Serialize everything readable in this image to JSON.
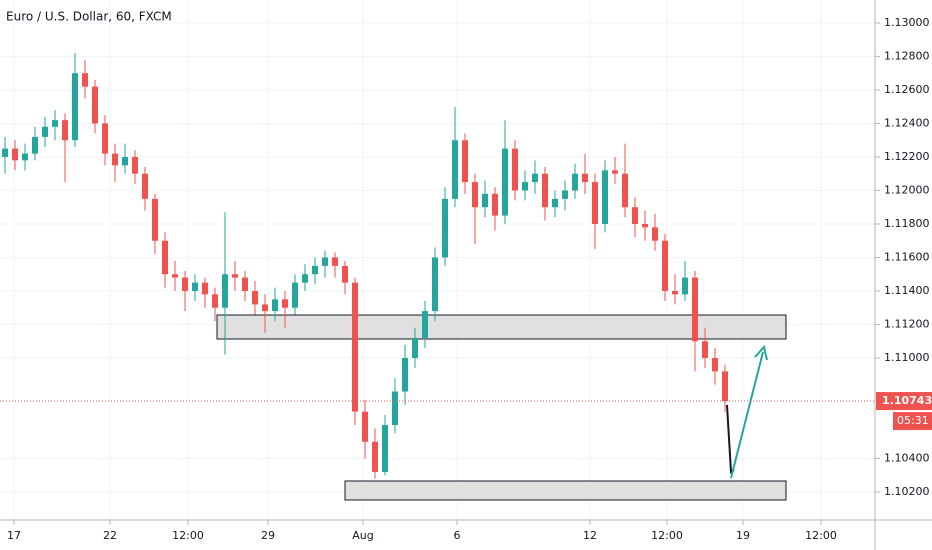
{
  "chart_data": {
    "type": "candlestick",
    "title": "Euro / U.S. Dollar, 60, FXCM",
    "up_color": "#26a69a",
    "down_color": "#ef5350",
    "ylim": [
      1.10033,
      1.13137
    ],
    "yticks": [
      {
        "value": 1.102,
        "label": "1.10200"
      },
      {
        "value": 1.104,
        "label": "1.10400"
      },
      {
        "value": 1.11,
        "label": "1.11000"
      },
      {
        "value": 1.112,
        "label": "1.11200"
      },
      {
        "value": 1.114,
        "label": "1.11400"
      },
      {
        "value": 1.116,
        "label": "1.11600"
      },
      {
        "value": 1.118,
        "label": "1.11800"
      },
      {
        "value": 1.12,
        "label": "1.12000"
      },
      {
        "value": 1.122,
        "label": "1.12200"
      },
      {
        "value": 1.124,
        "label": "1.12400"
      },
      {
        "value": 1.126,
        "label": "1.12600"
      },
      {
        "value": 1.128,
        "label": "1.12800"
      },
      {
        "value": 1.13,
        "label": "1.13000"
      }
    ],
    "xlim": [
      0,
      87.5
    ],
    "xticks": [
      {
        "value": 1.4,
        "label": "17"
      },
      {
        "value": 11,
        "label": "22"
      },
      {
        "value": 18.8,
        "label": "12:00"
      },
      {
        "value": 26.8,
        "label": "29"
      },
      {
        "value": 36.3,
        "label": "Aug"
      },
      {
        "value": 45.7,
        "label": "6"
      },
      {
        "value": 59,
        "label": "12"
      },
      {
        "value": 66.7,
        "label": "12:00"
      },
      {
        "value": 74.3,
        "label": "19"
      },
      {
        "value": 82.1,
        "label": "12:00"
      }
    ],
    "last_price": 1.10743,
    "countdown": "05:31",
    "ohlc": [
      [
        1.122,
        1.1232,
        1.121,
        1.1225
      ],
      [
        1.1225,
        1.123,
        1.1212,
        1.1218
      ],
      [
        1.1218,
        1.1228,
        1.1212,
        1.1222
      ],
      [
        1.1222,
        1.1238,
        1.1218,
        1.1232
      ],
      [
        1.1232,
        1.1244,
        1.1226,
        1.1238
      ],
      [
        1.1238,
        1.1248,
        1.123,
        1.1242
      ],
      [
        1.1242,
        1.1246,
        1.1205,
        1.123
      ],
      [
        1.123,
        1.1282,
        1.1226,
        1.127
      ],
      [
        1.127,
        1.1278,
        1.1255,
        1.1262
      ],
      [
        1.1262,
        1.1266,
        1.1234,
        1.124
      ],
      [
        1.124,
        1.1245,
        1.1215,
        1.1222
      ],
      [
        1.1222,
        1.1228,
        1.1205,
        1.1215
      ],
      [
        1.1215,
        1.1228,
        1.121,
        1.122
      ],
      [
        1.122,
        1.1224,
        1.1204,
        1.121
      ],
      [
        1.121,
        1.1214,
        1.1188,
        1.1195
      ],
      [
        1.1195,
        1.1198,
        1.1162,
        1.117
      ],
      [
        1.117,
        1.1175,
        1.1142,
        1.115
      ],
      [
        1.115,
        1.1158,
        1.114,
        1.1148
      ],
      [
        1.1148,
        1.1152,
        1.1128,
        1.114
      ],
      [
        1.114,
        1.115,
        1.1134,
        1.1145
      ],
      [
        1.1145,
        1.1148,
        1.113,
        1.1138
      ],
      [
        1.1138,
        1.1142,
        1.1122,
        1.113
      ],
      [
        1.113,
        1.1187,
        1.1102,
        1.115
      ],
      [
        1.115,
        1.1158,
        1.114,
        1.1148
      ],
      [
        1.1148,
        1.1152,
        1.1134,
        1.114
      ],
      [
        1.114,
        1.1146,
        1.1126,
        1.1132
      ],
      [
        1.1132,
        1.1138,
        1.1115,
        1.1128
      ],
      [
        1.1128,
        1.1142,
        1.1122,
        1.1135
      ],
      [
        1.1135,
        1.114,
        1.1118,
        1.113
      ],
      [
        1.113,
        1.115,
        1.1126,
        1.1145
      ],
      [
        1.1145,
        1.1156,
        1.114,
        1.115
      ],
      [
        1.115,
        1.116,
        1.1144,
        1.1155
      ],
      [
        1.1155,
        1.1164,
        1.1148,
        1.116
      ],
      [
        1.116,
        1.1163,
        1.1148,
        1.1155
      ],
      [
        1.1155,
        1.1158,
        1.1138,
        1.1145
      ],
      [
        1.1145,
        1.1148,
        1.106,
        1.1068
      ],
      [
        1.1068,
        1.1075,
        1.104,
        1.105
      ],
      [
        1.105,
        1.1058,
        1.1028,
        1.1032
      ],
      [
        1.1032,
        1.1066,
        1.103,
        1.106
      ],
      [
        1.106,
        1.1088,
        1.1055,
        1.108
      ],
      [
        1.108,
        1.1108,
        1.1072,
        1.11
      ],
      [
        1.11,
        1.1118,
        1.1094,
        1.1112
      ],
      [
        1.1112,
        1.1134,
        1.1106,
        1.1128
      ],
      [
        1.1128,
        1.1166,
        1.1122,
        1.116
      ],
      [
        1.116,
        1.1202,
        1.1155,
        1.1195
      ],
      [
        1.1195,
        1.125,
        1.119,
        1.123
      ],
      [
        1.123,
        1.1234,
        1.1198,
        1.1205
      ],
      [
        1.1205,
        1.121,
        1.1168,
        1.119
      ],
      [
        1.119,
        1.1206,
        1.1184,
        1.1198
      ],
      [
        1.1198,
        1.1202,
        1.1176,
        1.1185
      ],
      [
        1.1185,
        1.1242,
        1.118,
        1.1225
      ],
      [
        1.1225,
        1.123,
        1.1194,
        1.12
      ],
      [
        1.12,
        1.1212,
        1.1194,
        1.1205
      ],
      [
        1.1205,
        1.1218,
        1.1198,
        1.121
      ],
      [
        1.121,
        1.1214,
        1.1182,
        1.119
      ],
      [
        1.119,
        1.12,
        1.1184,
        1.1195
      ],
      [
        1.1195,
        1.1206,
        1.1188,
        1.12
      ],
      [
        1.12,
        1.1216,
        1.1195,
        1.121
      ],
      [
        1.121,
        1.1222,
        1.1198,
        1.1205
      ],
      [
        1.1205,
        1.121,
        1.1165,
        1.118
      ],
      [
        1.118,
        1.1218,
        1.1175,
        1.1212
      ],
      [
        1.1212,
        1.122,
        1.1204,
        1.121
      ],
      [
        1.121,
        1.1228,
        1.1184,
        1.119
      ],
      [
        1.119,
        1.1196,
        1.1172,
        1.118
      ],
      [
        1.118,
        1.1188,
        1.117,
        1.1178
      ],
      [
        1.1178,
        1.1186,
        1.1164,
        1.117
      ],
      [
        1.117,
        1.1174,
        1.1134,
        1.114
      ],
      [
        1.114,
        1.115,
        1.1132,
        1.1138
      ],
      [
        1.1138,
        1.1158,
        1.1134,
        1.1148
      ],
      [
        1.1148,
        1.1152,
        1.1092,
        1.111
      ],
      [
        1.111,
        1.1118,
        1.1094,
        1.11
      ],
      [
        1.11,
        1.1106,
        1.1084,
        1.1092
      ],
      [
        1.1092,
        1.1096,
        1.1068,
        1.10743
      ]
    ]
  }
}
